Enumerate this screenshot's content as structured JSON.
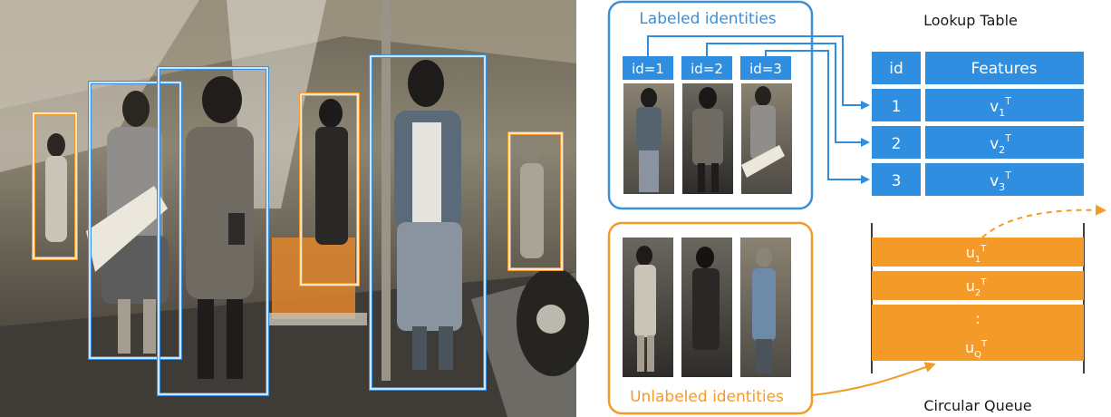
{
  "labeled_box": {
    "title": "Labeled identities"
  },
  "id_labels": [
    "id=1",
    "id=2",
    "id=3"
  ],
  "unlabeled_box": {
    "title": "Unlabeled identities"
  },
  "lookup_table": {
    "title": "Lookup Table",
    "header": {
      "id": "id",
      "features": "Features"
    },
    "rows": [
      {
        "id": "1",
        "feature": "v",
        "sub": "1",
        "sup": "T"
      },
      {
        "id": "2",
        "feature": "v",
        "sub": "2",
        "sup": "T"
      },
      {
        "id": "3",
        "feature": "v",
        "sub": "3",
        "sup": "T"
      }
    ]
  },
  "queue": {
    "title": "Circular Queue",
    "rows": [
      {
        "feature": "u",
        "sub": "1",
        "sup": "T"
      },
      {
        "feature": "u",
        "sub": "2",
        "sup": "T"
      },
      {
        "feature": ":",
        "sub": "",
        "sup": ""
      },
      {
        "feature": "u",
        "sub": "Q",
        "sup": "T"
      }
    ]
  },
  "colors": {
    "blue": "#3c8fd8",
    "orange": "#f39a28",
    "table_blue": "#2f8ee0",
    "queue_orange": "#f39a28"
  }
}
